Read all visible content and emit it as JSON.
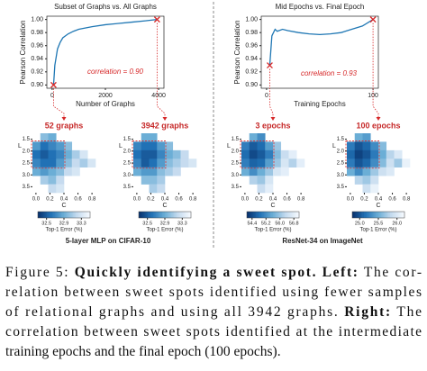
{
  "chart_data": [
    {
      "type": "line",
      "title": "Subset of Graphs vs. All Graphs",
      "xlabel": "Number of Graphs",
      "ylabel": "Pearson Correlation",
      "x": [
        52,
        100,
        200,
        300,
        400,
        600,
        800,
        1000,
        1500,
        2000,
        2500,
        3000,
        3500,
        3942
      ],
      "values": [
        0.9,
        0.93,
        0.955,
        0.965,
        0.972,
        0.978,
        0.982,
        0.985,
        0.989,
        0.992,
        0.994,
        0.996,
        0.998,
        1.0
      ],
      "color": "#1f77b4",
      "xlim": [
        -200,
        4200
      ],
      "xticks": [
        0,
        2000,
        4000
      ],
      "ylim": [
        0.895,
        1.005
      ],
      "yticks": [
        {
          "value": 0.9,
          "label": "0.90"
        },
        0.92,
        0.94,
        0.96,
        0.98,
        {
          "value": 1.0,
          "label": "1.00"
        }
      ],
      "markers": {
        "x": [
          52,
          3942
        ],
        "values": [
          0.9,
          1.0
        ],
        "color": "#d62728"
      },
      "annotation": "correlation = 0.90"
    },
    {
      "type": "line",
      "title": "Mid Epochs vs. Final Epoch",
      "xlabel": "Training Epochs",
      "ylabel": "Pearson Correlation",
      "x": [
        3,
        5,
        8,
        10,
        15,
        20,
        30,
        40,
        50,
        60,
        70,
        80,
        90,
        100
      ],
      "values": [
        0.93,
        0.975,
        0.985,
        0.982,
        0.985,
        0.983,
        0.98,
        0.978,
        0.977,
        0.978,
        0.98,
        0.985,
        0.99,
        1.0
      ],
      "color": "#1f77b4",
      "xlim": [
        -5,
        105
      ],
      "xticks": [
        0,
        100
      ],
      "ylim": [
        0.895,
        1.005
      ],
      "yticks": [
        {
          "value": 0.9,
          "label": "0.90"
        },
        0.92,
        0.94,
        0.96,
        0.98,
        {
          "value": 1.0,
          "label": "1.00"
        }
      ],
      "markers": {
        "x": [
          3,
          100
        ],
        "values": [
          0.93,
          1.0
        ],
        "color": "#d62728"
      },
      "annotation": "correlation = 0.93"
    },
    {
      "type": "heatmap",
      "title": "52 graphs",
      "xlabel": "C",
      "ylabel": "L",
      "colorbar_label": "Top-1 Error (%)",
      "xlim": [
        -0.05,
        0.85
      ],
      "xticks": [
        {
          "value": 0,
          "label": "0.0"
        },
        0.2,
        0.4,
        0.6,
        0.8
      ],
      "ylim": [
        1.25,
        3.75
      ],
      "yticks": [
        1.5,
        {
          "value": 2,
          "label": "2.0"
        },
        2.5,
        {
          "value": 3,
          "label": "3.0"
        },
        3.5
      ],
      "clim": [
        32.3,
        33.5
      ],
      "cticks": [
        32.5,
        32.9,
        33.3
      ],
      "values": [
        [
          null,
          33.0,
          32.9,
          null,
          null,
          null,
          null,
          null
        ],
        [
          32.8,
          32.6,
          32.7,
          32.8,
          33.0,
          null,
          null,
          null
        ],
        [
          32.6,
          32.5,
          32.6,
          32.7,
          32.9,
          33.1,
          33.3,
          null
        ],
        [
          32.7,
          32.6,
          32.6,
          32.8,
          33.0,
          33.2,
          33.1,
          33.3
        ],
        [
          32.9,
          32.8,
          32.9,
          33.0,
          33.2,
          33.3,
          null,
          null
        ],
        [
          null,
          33.1,
          33.0,
          33.2,
          null,
          null,
          null,
          null
        ],
        [
          null,
          null,
          33.2,
          33.3,
          null,
          null,
          null,
          null
        ]
      ]
    },
    {
      "type": "heatmap",
      "title": "3942 graphs",
      "xlabel": "C",
      "ylabel": "L",
      "colorbar_label": "Top-1 Error (%)",
      "xlim": [
        -0.05,
        0.85
      ],
      "xticks": [
        {
          "value": 0,
          "label": "0.0"
        },
        0.2,
        0.4,
        0.6,
        0.8
      ],
      "ylim": [
        1.25,
        3.75
      ],
      "yticks": [
        1.5,
        {
          "value": 2,
          "label": "2.0"
        },
        2.5,
        {
          "value": 3,
          "label": "3.0"
        },
        3.5
      ],
      "clim": [
        32.3,
        33.5
      ],
      "cticks": [
        32.5,
        32.9,
        33.3
      ],
      "values": [
        [
          null,
          32.9,
          32.9,
          null,
          null,
          null,
          null,
          null
        ],
        [
          32.7,
          32.6,
          32.6,
          32.8,
          33.0,
          null,
          null,
          null
        ],
        [
          32.6,
          32.5,
          32.5,
          32.7,
          32.9,
          33.0,
          33.2,
          null
        ],
        [
          32.7,
          32.5,
          32.6,
          32.8,
          33.0,
          33.1,
          33.2,
          33.3
        ],
        [
          32.9,
          32.8,
          32.8,
          33.0,
          33.1,
          33.2,
          null,
          null
        ],
        [
          null,
          33.0,
          33.0,
          33.1,
          null,
          null,
          null,
          null
        ],
        [
          null,
          null,
          33.1,
          33.2,
          null,
          null,
          null,
          null
        ]
      ]
    },
    {
      "type": "heatmap",
      "title": "3 epochs",
      "xlabel": "C",
      "ylabel": "L",
      "colorbar_label": "Top-1 Error (%)",
      "xlim": [
        -0.05,
        0.85
      ],
      "xticks": [
        {
          "value": 0,
          "label": "0.0"
        },
        0.2,
        0.4,
        0.6,
        0.8
      ],
      "ylim": [
        1.25,
        3.75
      ],
      "yticks": [
        1.5,
        {
          "value": 2,
          "label": "2.0"
        },
        2.5,
        {
          "value": 3,
          "label": "3.0"
        },
        3.5
      ],
      "clim": [
        54.1,
        57.1
      ],
      "cticks": [
        54.4,
        55.2,
        {
          "value": 56,
          "label": "56.0"
        },
        56.8
      ],
      "values": [
        [
          null,
          55.6,
          55.2,
          null,
          null,
          null,
          null,
          null
        ],
        [
          55.0,
          54.6,
          54.8,
          55.4,
          56.0,
          null,
          null,
          null
        ],
        [
          54.8,
          54.4,
          54.6,
          55.0,
          55.8,
          56.4,
          56.8,
          null
        ],
        [
          55.0,
          54.7,
          54.8,
          55.4,
          56.0,
          56.6,
          56.2,
          56.8
        ],
        [
          55.6,
          55.2,
          55.6,
          56.0,
          56.6,
          56.8,
          null,
          null
        ],
        [
          null,
          56.2,
          56.0,
          56.6,
          null,
          null,
          null,
          null
        ],
        [
          null,
          null,
          56.4,
          56.8,
          null,
          null,
          null,
          null
        ]
      ]
    },
    {
      "type": "heatmap",
      "title": "100 epochs",
      "xlabel": "C",
      "ylabel": "L",
      "colorbar_label": "Top-1 Error (%)",
      "xlim": [
        -0.05,
        0.85
      ],
      "xticks": [
        {
          "value": 0,
          "label": "0.0"
        },
        0.2,
        0.4,
        0.6,
        0.8
      ],
      "ylim": [
        1.25,
        3.75
      ],
      "yticks": [
        1.5,
        {
          "value": 2,
          "label": "2.0"
        },
        2.5,
        {
          "value": 3,
          "label": "3.0"
        },
        3.5
      ],
      "clim": [
        24.8,
        26.2
      ],
      "cticks": [
        {
          "value": 25,
          "label": "25.0"
        },
        25.5,
        {
          "value": 26,
          "label": "26.0"
        }
      ],
      "values": [
        [
          null,
          25.5,
          25.4,
          null,
          null,
          null,
          null,
          null
        ],
        [
          25.2,
          25.0,
          25.1,
          25.3,
          25.6,
          null,
          null,
          null
        ],
        [
          25.1,
          24.9,
          25.0,
          25.2,
          25.5,
          25.8,
          26.0,
          null
        ],
        [
          25.2,
          25.0,
          25.1,
          25.3,
          25.6,
          25.9,
          25.7,
          26.1
        ],
        [
          25.5,
          25.3,
          25.5,
          25.7,
          25.9,
          26.0,
          null,
          null
        ],
        [
          null,
          25.8,
          25.7,
          25.9,
          null,
          null,
          null,
          null
        ],
        [
          null,
          null,
          25.9,
          26.1,
          null,
          null,
          null,
          null
        ]
      ]
    }
  ],
  "panels": [
    {
      "label": "5-layer MLP on CIFAR-10"
    },
    {
      "label": "ResNet-34 on ImageNet"
    }
  ],
  "caption": {
    "lines": [
      [
        {
          "text": "Figure 5: ",
          "bold": false
        },
        {
          "text": "Quickly identifying a sweet spot. Left:",
          "bold": true
        },
        {
          "text": " The cor-",
          "bold": false
        }
      ],
      [
        {
          "text": "relation between sweet spots identified using fewer samples",
          "bold": false
        }
      ],
      [
        {
          "text": "of relational graphs and using all 3942 graphs. ",
          "bold": false
        },
        {
          "text": "Right:",
          "bold": true
        },
        {
          "text": " The",
          "bold": false
        }
      ],
      [
        {
          "text": "correlation between sweet spots identified at the intermediate",
          "bold": false
        }
      ],
      [
        {
          "text": "training epochs and the final epoch (100 epochs).",
          "bold": false
        }
      ]
    ]
  }
}
